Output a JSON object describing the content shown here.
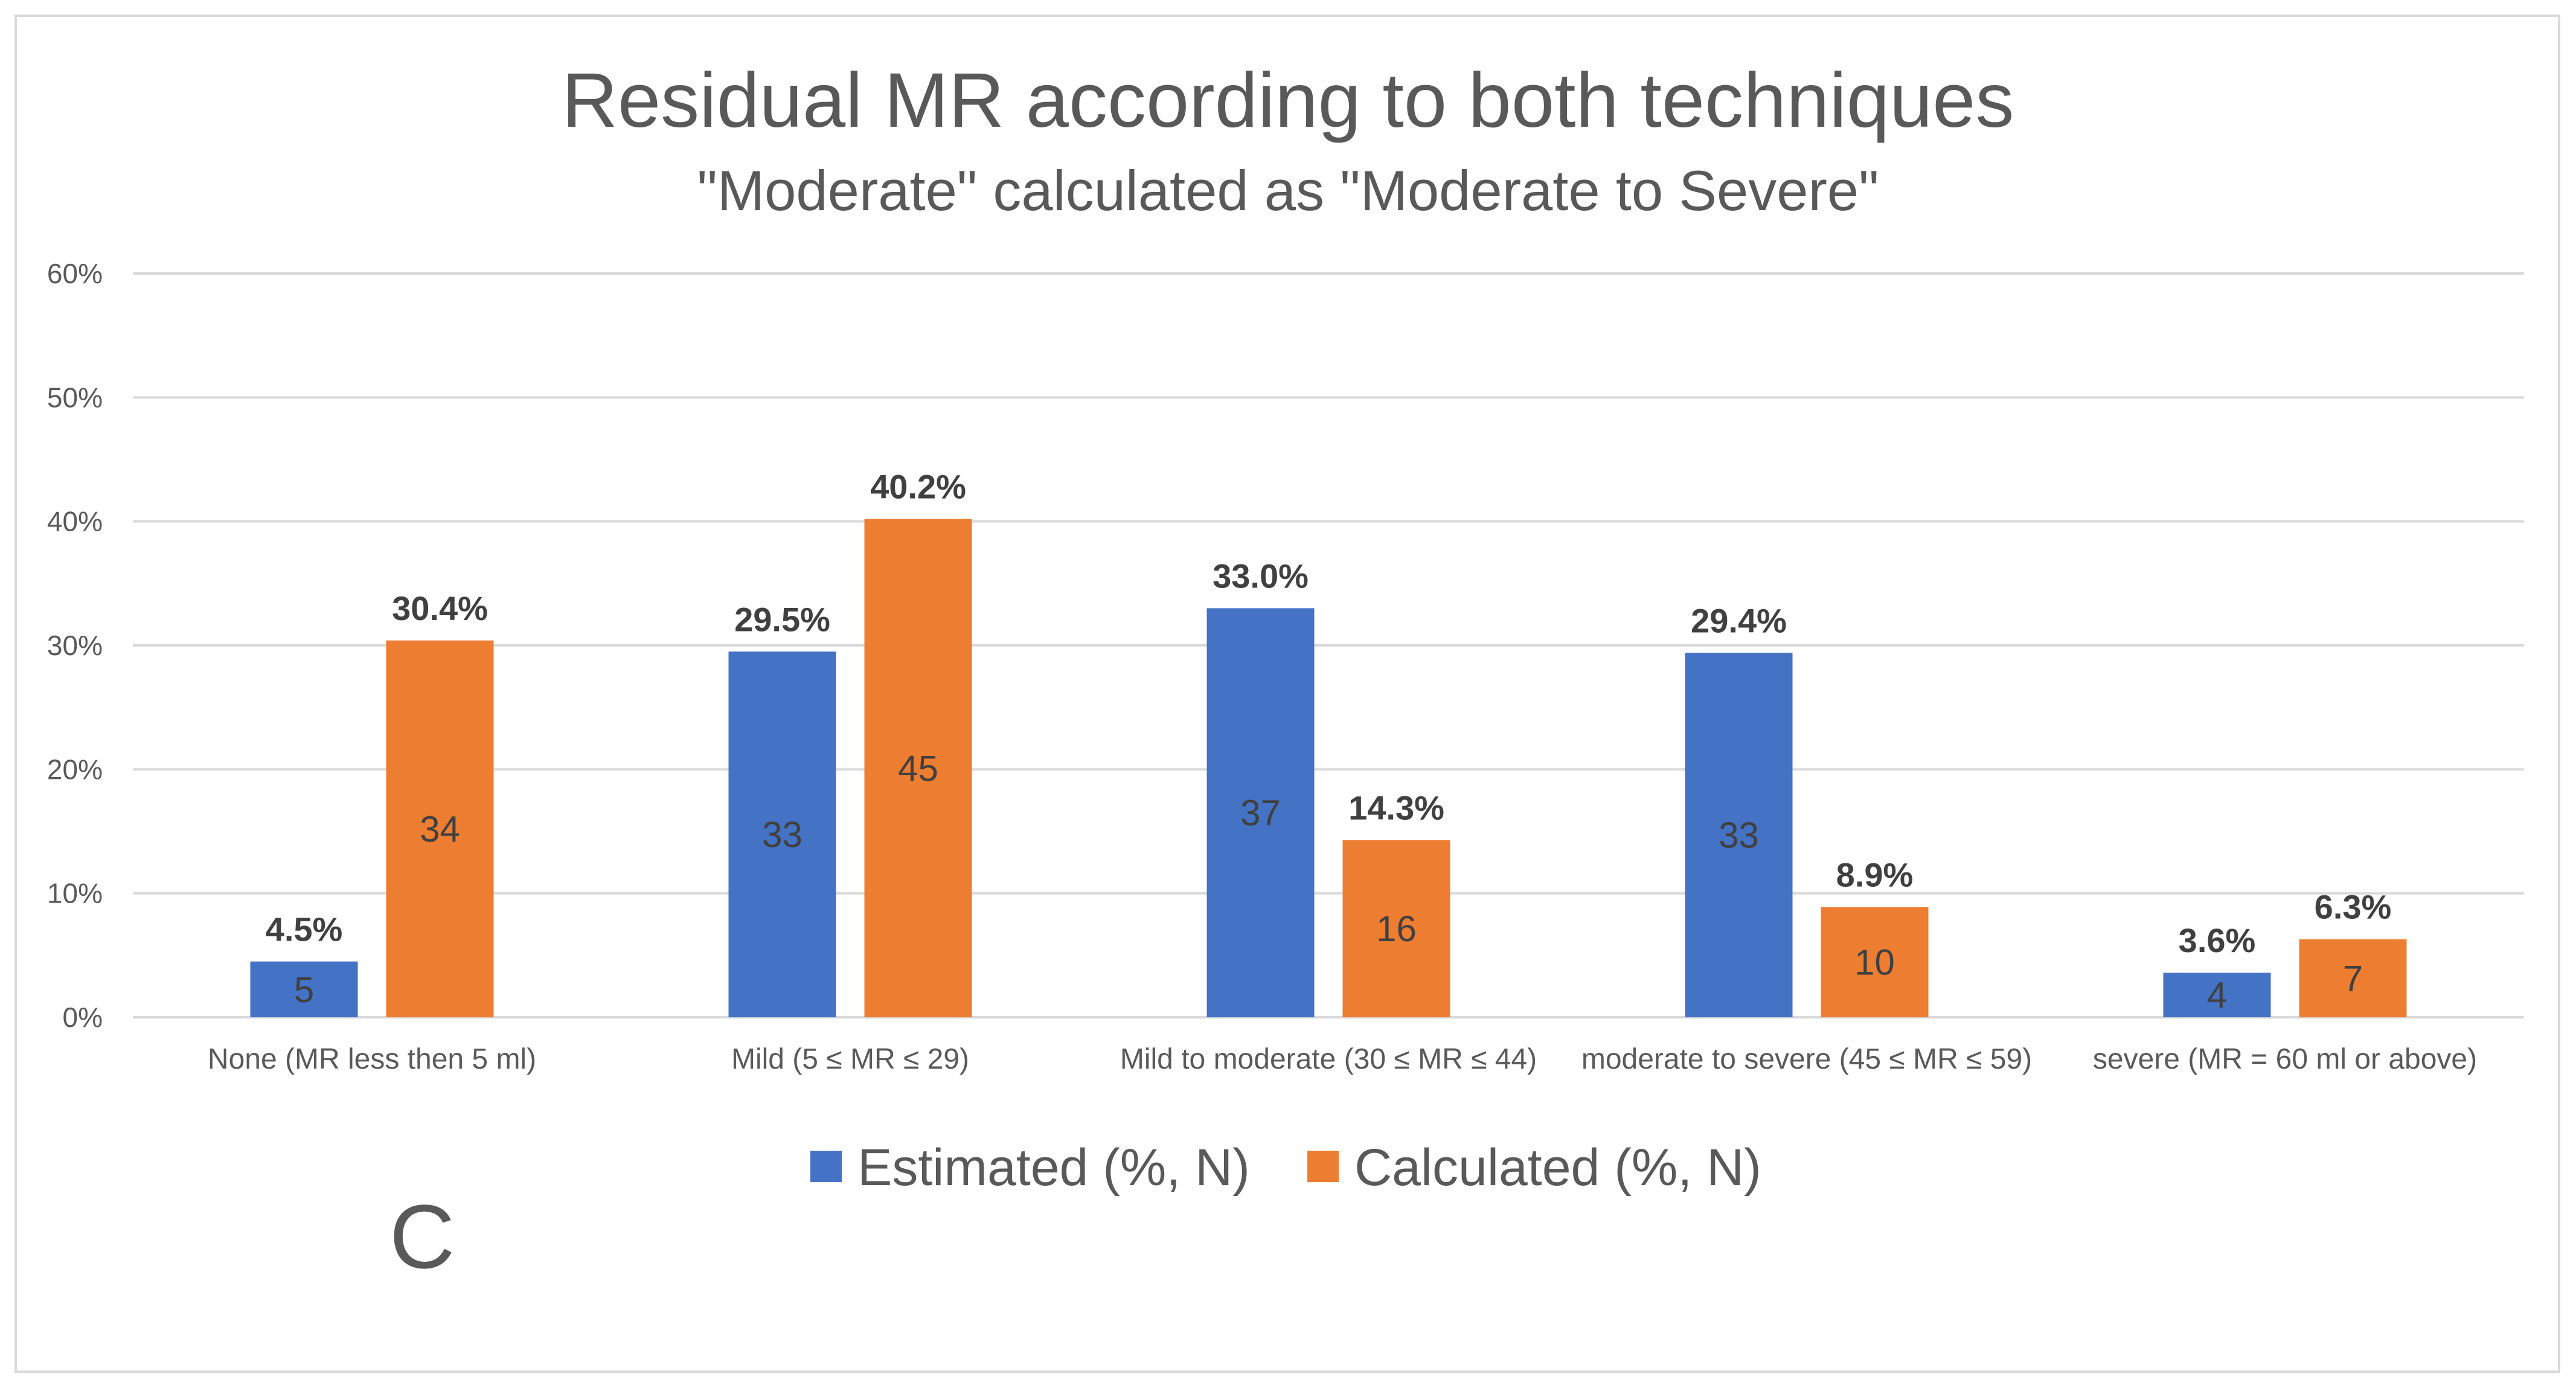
{
  "chart_data": {
    "type": "bar",
    "title": "Residual MR according to both techniques",
    "subtitle": "\"Moderate\" calculated as \"Moderate to Severe\"",
    "categories": [
      "None (MR less then 5 ml)",
      "Mild (5 ≤ MR ≤ 29)",
      "Mild to moderate (30 ≤ MR ≤ 44)",
      "moderate to severe (45 ≤ MR ≤ 59)",
      "severe (MR = 60 ml or above)"
    ],
    "series": [
      {
        "name": "Estimated (%, N)",
        "color": "#4472c4",
        "values": [
          4.5,
          29.5,
          33.0,
          29.4,
          3.6
        ],
        "pct_labels": [
          "4.5%",
          "29.5%",
          "33.0%",
          "29.4%",
          "3.6%"
        ],
        "counts": [
          "5",
          "33",
          "37",
          "33",
          "4"
        ]
      },
      {
        "name": "Calculated (%, N)",
        "color": "#ed7d31",
        "values": [
          30.4,
          40.2,
          14.3,
          8.9,
          6.3
        ],
        "pct_labels": [
          "30.4%",
          "40.2%",
          "14.3%",
          "8.9%",
          "6.3%"
        ],
        "counts": [
          "34",
          "45",
          "16",
          "10",
          "7"
        ]
      }
    ],
    "ylim": [
      0,
      60
    ],
    "yticks": [
      "0%",
      "10%",
      "20%",
      "30%",
      "40%",
      "50%",
      "60%"
    ],
    "ytick_values": [
      0,
      10,
      20,
      30,
      40,
      50,
      60
    ],
    "grid": true,
    "legend_position": "bottom",
    "xlabel": "",
    "ylabel": ""
  },
  "panel_label": "C"
}
